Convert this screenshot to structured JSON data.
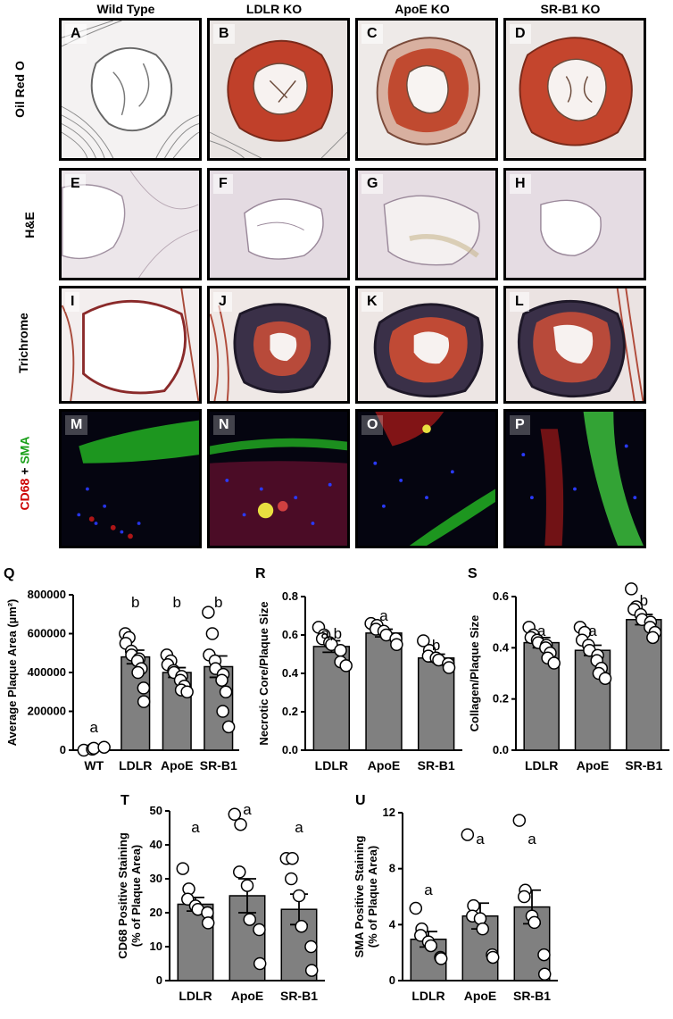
{
  "column_headers": [
    "Wild Type",
    "LDLR KO",
    "ApoE KO",
    "SR-B1 KO"
  ],
  "row_labels": {
    "oil_red": "Oil Red O",
    "he": "H&E",
    "trichrome": "Trichrome",
    "fluor": {
      "cd68": "CD68",
      "plus": " + ",
      "sma": "SMA"
    }
  },
  "panel_letters": [
    "A",
    "B",
    "C",
    "D",
    "E",
    "F",
    "G",
    "H",
    "I",
    "J",
    "K",
    "L",
    "M",
    "N",
    "O",
    "P"
  ],
  "colors": {
    "bar": "#808080",
    "cd68": "#cc0000",
    "sma": "#1aa01a",
    "oil_red": "#c0402a"
  },
  "chart_data": [
    {
      "id": "Q",
      "type": "bar",
      "categories": [
        "WT",
        "LDLR",
        "ApoE",
        "SR-B1"
      ],
      "values": [
        10000,
        480000,
        400000,
        430000
      ],
      "errors": [
        5000,
        35000,
        25000,
        55000
      ],
      "points": [
        [
          0,
          5000,
          10000,
          15000
        ],
        [
          600000,
          580000,
          550000,
          510000,
          490000,
          470000,
          460000,
          420000,
          400000,
          320000,
          250000
        ],
        [
          490000,
          460000,
          440000,
          410000,
          400000,
          380000,
          360000,
          330000,
          310000,
          300000
        ],
        [
          710000,
          600000,
          490000,
          460000,
          420000,
          390000,
          360000,
          300000,
          200000,
          120000
        ]
      ],
      "letters": [
        "a",
        "b",
        "b",
        "b"
      ],
      "ylabel": "Average Plaque Area (µm²)",
      "ylim": [
        0,
        800000
      ],
      "yticks": [
        "0",
        "200000",
        "400000",
        "600000",
        "800000"
      ]
    },
    {
      "id": "R",
      "type": "bar",
      "categories": [
        "LDLR",
        "ApoE",
        "SR-B1"
      ],
      "values": [
        0.54,
        0.61,
        0.48
      ],
      "errors": [
        0.03,
        0.02,
        0.02
      ],
      "points": [
        [
          0.64,
          0.6,
          0.58,
          0.56,
          0.55,
          0.52,
          0.46,
          0.44
        ],
        [
          0.66,
          0.65,
          0.63,
          0.62,
          0.6,
          0.58,
          0.55
        ],
        [
          0.57,
          0.52,
          0.49,
          0.48,
          0.47,
          0.45,
          0.43
        ]
      ],
      "letters": [
        "a,b",
        "a",
        "b"
      ],
      "ylabel": "Necrotic Core/Plaque Size",
      "ylim": [
        0,
        0.8
      ],
      "yticks": [
        "0.0",
        "0.2",
        "0.4",
        "0.6",
        "0.8"
      ]
    },
    {
      "id": "S",
      "type": "bar",
      "categories": [
        "LDLR",
        "ApoE",
        "SR-B1"
      ],
      "values": [
        0.42,
        0.39,
        0.51
      ],
      "errors": [
        0.02,
        0.02,
        0.02
      ],
      "points": [
        [
          0.48,
          0.45,
          0.44,
          0.43,
          0.42,
          0.41,
          0.4,
          0.38,
          0.36,
          0.34
        ],
        [
          0.48,
          0.46,
          0.43,
          0.41,
          0.39,
          0.37,
          0.35,
          0.32,
          0.3,
          0.28
        ],
        [
          0.63,
          0.56,
          0.55,
          0.53,
          0.51,
          0.5,
          0.48,
          0.46,
          0.44
        ]
      ],
      "letters": [
        "a",
        "a",
        "b"
      ],
      "ylabel": "Collagen/Plaque Size",
      "ylim": [
        0,
        0.6
      ],
      "yticks": [
        "0.0",
        "0.2",
        "0.4",
        "0.6"
      ]
    },
    {
      "id": "T",
      "type": "bar",
      "categories": [
        "LDLR",
        "ApoE",
        "SR-B1"
      ],
      "values": [
        22.5,
        25,
        21
      ],
      "errors": [
        2,
        5,
        4.5
      ],
      "points": [
        [
          33,
          27,
          24,
          22,
          21,
          20,
          17
        ],
        [
          49,
          46,
          32,
          28,
          18,
          15,
          5
        ],
        [
          36,
          36,
          30,
          25,
          16,
          10,
          3
        ]
      ],
      "letters": [
        "a",
        "a",
        "a"
      ],
      "ylabel": "CD68 Positive Staining\n(% of Plaque Area)",
      "ylim": [
        0,
        50
      ],
      "yticks": [
        "0",
        "10",
        "20",
        "30",
        "40",
        "50"
      ]
    },
    {
      "id": "U",
      "type": "bar",
      "categories": [
        "LDLR",
        "ApoE",
        "SR-B1"
      ],
      "values": [
        3.2,
        5.0,
        5.7
      ],
      "errors": [
        0.6,
        1.0,
        1.3
      ],
      "points": [
        [
          5.6,
          4.0,
          3.5,
          3.0,
          2.7,
          1.8,
          1.7
        ],
        [
          11.3,
          5.8,
          5.0,
          4.8,
          4.0,
          2.0,
          1.8
        ],
        [
          12.4,
          7.0,
          6.5,
          5.0,
          4.5,
          2.0,
          0.5
        ]
      ],
      "letters": [
        "a",
        "a",
        "a"
      ],
      "ylabel": "SMA Positive Staining\n(% of Plaque Area)",
      "ylim": [
        0,
        13
      ],
      "yticks": [
        "0",
        "4",
        "8",
        "12"
      ]
    }
  ]
}
